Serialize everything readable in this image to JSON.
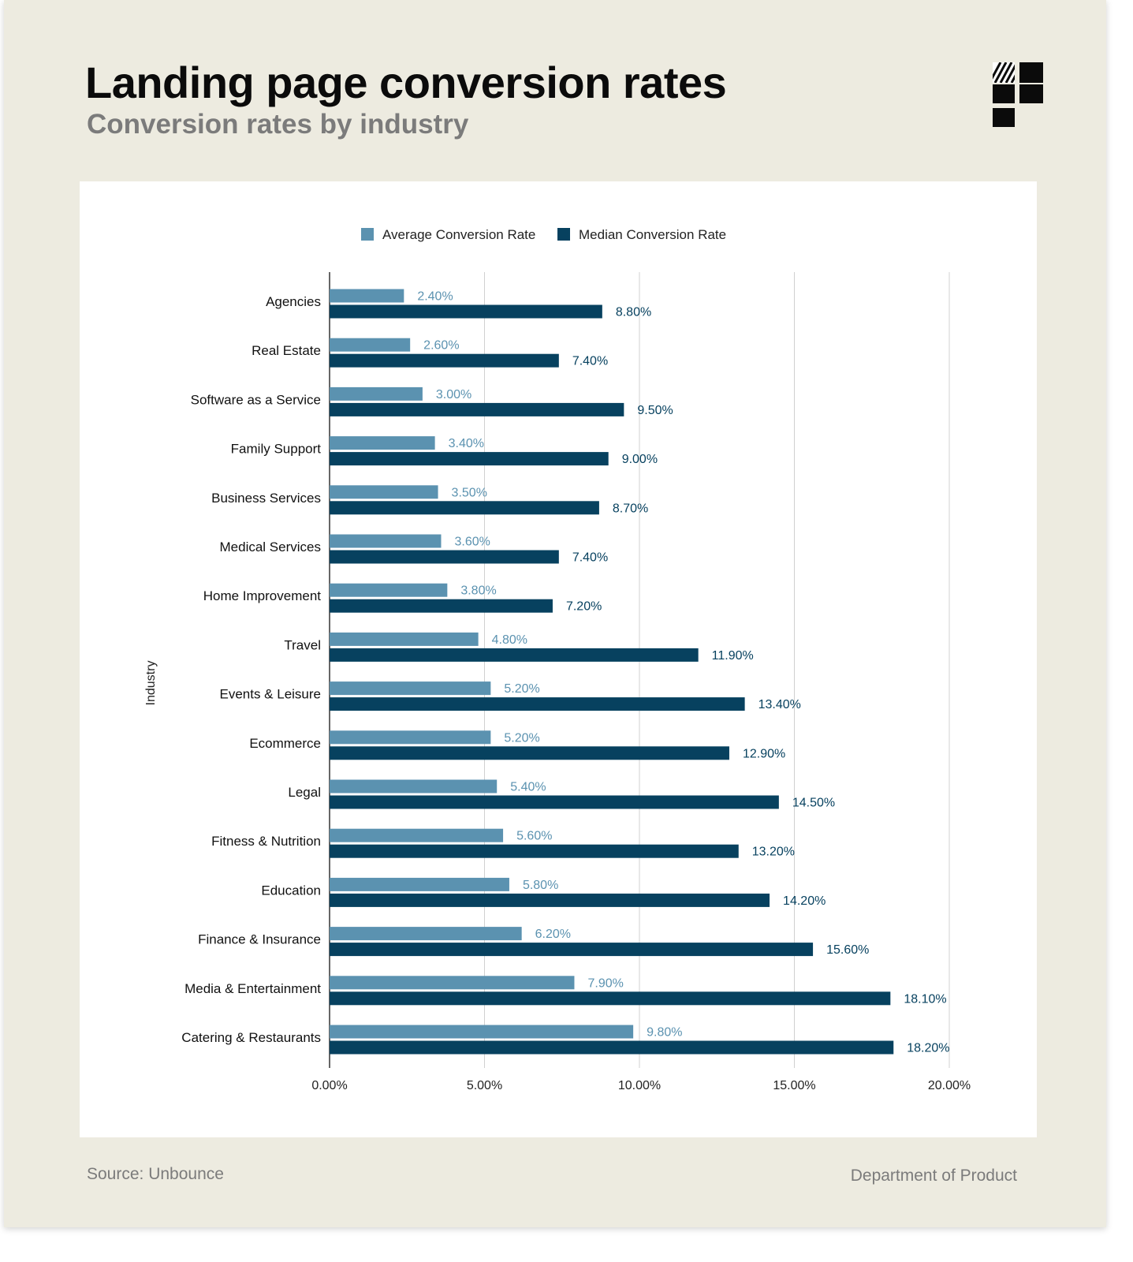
{
  "header": {
    "title": "Landing page conversion rates",
    "subtitle": "Conversion rates by industry",
    "logo_icon": "department-of-product-logo-icon"
  },
  "footer": {
    "source": "Source: Unbounce",
    "brand": "Department of Product"
  },
  "colors": {
    "background": "#edebe0",
    "panel": "#ffffff",
    "average": "#5b92b0",
    "median": "#07415f",
    "gridline": "#d0d0d0",
    "axis": "#333333"
  },
  "chart_data": {
    "type": "bar",
    "orientation": "horizontal",
    "title": "Landing page conversion rates",
    "subtitle": "Conversion rates by industry",
    "ylabel": "Industry",
    "xlabel": "",
    "xlim": [
      0,
      20
    ],
    "x_ticks": [
      0,
      5,
      10,
      15,
      20
    ],
    "x_tick_labels": [
      "0.00%",
      "5.00%",
      "10.00%",
      "15.00%",
      "20.00%"
    ],
    "grid": true,
    "legend_position": "top-center",
    "categories": [
      "Agencies",
      "Real Estate",
      "Software as a Service",
      "Family Support",
      "Business Services",
      "Medical Services",
      "Home Improvement",
      "Travel",
      "Events & Leisure",
      "Ecommerce",
      "Legal",
      "Fitness & Nutrition",
      "Education",
      "Finance & Insurance",
      "Media & Entertainment",
      "Catering & Restaurants"
    ],
    "series": [
      {
        "name": "Average Conversion Rate",
        "color": "#5b92b0",
        "values": [
          2.4,
          2.6,
          3.0,
          3.4,
          3.5,
          3.6,
          3.8,
          4.8,
          5.2,
          5.2,
          5.4,
          5.6,
          5.8,
          6.2,
          7.9,
          9.8
        ],
        "labels": [
          "2.40%",
          "2.60%",
          "3.00%",
          "3.40%",
          "3.50%",
          "3.60%",
          "3.80%",
          "4.80%",
          "5.20%",
          "5.20%",
          "5.40%",
          "5.60%",
          "5.80%",
          "6.20%",
          "7.90%",
          "9.80%"
        ]
      },
      {
        "name": "Median Conversion Rate",
        "color": "#07415f",
        "values": [
          8.8,
          7.4,
          9.5,
          9.0,
          8.7,
          7.4,
          7.2,
          11.9,
          13.4,
          12.9,
          14.5,
          13.2,
          14.2,
          15.6,
          18.1,
          18.2
        ],
        "labels": [
          "8.80%",
          "7.40%",
          "9.50%",
          "9.00%",
          "8.70%",
          "7.40%",
          "7.20%",
          "11.90%",
          "13.40%",
          "12.90%",
          "14.50%",
          "13.20%",
          "14.20%",
          "15.60%",
          "18.10%",
          "18.20%"
        ]
      }
    ]
  }
}
